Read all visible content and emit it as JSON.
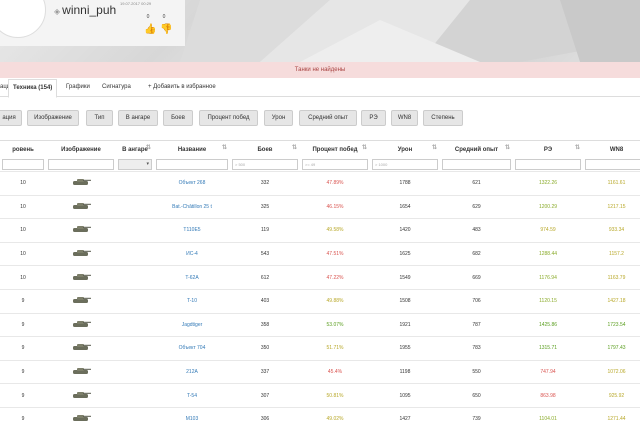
{
  "profile": {
    "username": "winni_puh",
    "date": "19.07.2017 00:29",
    "likes": "0",
    "dislikes": "0"
  },
  "alert": "Танки не найдены",
  "tabs": [
    "ация",
    "Техника (154)",
    "Графики",
    "Сигнатура",
    "+ Добавить в избранное"
  ],
  "column_buttons": [
    "ация",
    "Изображение",
    "Тип",
    "В ангаре",
    "Боев",
    "Процент побед",
    "Урон",
    "Средний опыт",
    "РЭ",
    "WN8",
    "Степень"
  ],
  "columns": [
    "ровень",
    "Изображение",
    "В ангаре",
    "Название",
    "Боев",
    "Процент побед",
    "Урон",
    "Средний опыт",
    "РЭ",
    "WN8"
  ],
  "filters": {
    "battles": "> 500",
    "winrate": ">= 49",
    "damage": "> 1000"
  },
  "rows": [
    {
      "level": "10",
      "name": "Объект 268",
      "battles": "332",
      "winrate": "47.89%",
      "wr_color": "red",
      "damage": "1788",
      "exp": "621",
      "re": "1322.26",
      "re_color": "lgreen",
      "wn8": "1161.61",
      "wn8_color": "yellow"
    },
    {
      "level": "10",
      "name": "Bat.-Châtillon 25 t",
      "battles": "325",
      "winrate": "46.15%",
      "wr_color": "red",
      "damage": "1654",
      "exp": "629",
      "re": "1200.29",
      "re_color": "lgreen",
      "wn8": "1217.15",
      "wn8_color": "yellow"
    },
    {
      "level": "10",
      "name": "T110E5",
      "battles": "119",
      "winrate": "49.58%",
      "wr_color": "yellow",
      "damage": "1420",
      "exp": "483",
      "re": "974.59",
      "re_color": "yellow",
      "wn8": "933.34",
      "wn8_color": "yellow"
    },
    {
      "level": "10",
      "name": "ИС-4",
      "battles": "543",
      "winrate": "47.51%",
      "wr_color": "red",
      "damage": "1625",
      "exp": "682",
      "re": "1288.44",
      "re_color": "lgreen",
      "wn8": "1157.2",
      "wn8_color": "yellow"
    },
    {
      "level": "10",
      "name": "T-62A",
      "battles": "612",
      "winrate": "47.22%",
      "wr_color": "red",
      "damage": "1549",
      "exp": "669",
      "re": "1176.94",
      "re_color": "lgreen",
      "wn8": "1163.79",
      "wn8_color": "yellow"
    },
    {
      "level": "9",
      "name": "T-10",
      "battles": "403",
      "winrate": "49.88%",
      "wr_color": "yellow",
      "damage": "1508",
      "exp": "706",
      "re": "1120.15",
      "re_color": "lgreen",
      "wn8": "1427.18",
      "wn8_color": "yellow"
    },
    {
      "level": "9",
      "name": "Jagdtiger",
      "battles": "358",
      "winrate": "53.07%",
      "wr_color": "green",
      "damage": "1921",
      "exp": "787",
      "re": "1425.86",
      "re_color": "green",
      "wn8": "1723.54",
      "wn8_color": "green"
    },
    {
      "level": "9",
      "name": "Объект 704",
      "battles": "350",
      "winrate": "51.71%",
      "wr_color": "yellow",
      "damage": "1955",
      "exp": "783",
      "re": "1315.71",
      "re_color": "green",
      "wn8": "1797.43",
      "wn8_color": "green"
    },
    {
      "level": "9",
      "name": "212A",
      "battles": "337",
      "winrate": "45.4%",
      "wr_color": "red",
      "damage": "1198",
      "exp": "550",
      "re": "747.94",
      "re_color": "red",
      "wn8": "1072.06",
      "wn8_color": "yellow"
    },
    {
      "level": "9",
      "name": "T-54",
      "battles": "307",
      "winrate": "50.81%",
      "wr_color": "yellow",
      "damage": "1095",
      "exp": "650",
      "re": "863.98",
      "re_color": "red",
      "wn8": "925.92",
      "wn8_color": "yellow"
    },
    {
      "level": "9",
      "name": "M103",
      "battles": "306",
      "winrate": "49.02%",
      "wr_color": "yellow",
      "damage": "1427",
      "exp": "739",
      "re": "1104.01",
      "re_color": "lgreen",
      "wn8": "1271.44",
      "wn8_color": "yellow"
    }
  ]
}
